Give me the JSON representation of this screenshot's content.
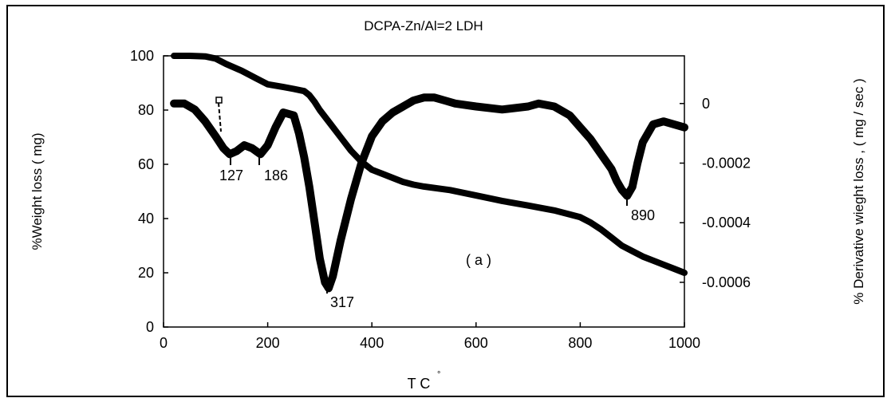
{
  "chart_data": {
    "type": "line",
    "title": "DCPA-Zn/Al=2 LDH",
    "xlabel": "T C",
    "xlabel_degree": "°",
    "ylabel_left": "%Weight loss ( mg)",
    "ylabel_right": "% Derivative wieght loss , ( mg / sec )",
    "xlim": [
      0,
      1000
    ],
    "ylim_left": [
      0,
      100
    ],
    "ylim_right": [
      -0.00075,
      0.00016
    ],
    "xticks": [
      "0",
      "200",
      "400",
      "600",
      "800",
      "1000"
    ],
    "yticks_left": [
      "0",
      "20",
      "40",
      "60",
      "80",
      "100"
    ],
    "yticks_right": [
      "0",
      "-0.0002",
      "-0.0004",
      "-0.0006"
    ],
    "grid": false,
    "annotation": "( a )",
    "peak_labels": [
      "127",
      "186",
      "317",
      "890"
    ],
    "series": [
      {
        "axis": "left",
        "x": [
          20,
          50,
          80,
          100,
          120,
          150,
          180,
          200,
          230,
          250,
          270,
          280,
          290,
          300,
          320,
          340,
          360,
          380,
          400,
          420,
          440,
          460,
          480,
          500,
          550,
          600,
          650,
          700,
          750,
          800,
          820,
          840,
          860,
          880,
          900,
          920,
          940,
          960,
          980,
          1000
        ],
        "y": [
          100,
          100,
          99.8,
          99,
          97,
          94.5,
          91.5,
          89.5,
          88.5,
          87.8,
          87,
          85.5,
          83,
          80,
          75,
          70,
          65,
          61,
          58,
          56.5,
          55,
          53.5,
          52.5,
          51.8,
          50.5,
          48.5,
          46.5,
          44.8,
          43,
          40.5,
          38.5,
          36,
          33,
          30,
          28,
          26,
          24.5,
          23,
          21.5,
          20
        ]
      },
      {
        "axis": "right",
        "x": [
          20,
          40,
          60,
          80,
          100,
          115,
          127,
          140,
          155,
          170,
          186,
          200,
          215,
          230,
          250,
          260,
          270,
          280,
          290,
          300,
          310,
          317,
          325,
          340,
          360,
          380,
          400,
          420,
          440,
          460,
          480,
          500,
          520,
          540,
          560,
          600,
          650,
          700,
          720,
          750,
          780,
          800,
          820,
          840,
          860,
          870,
          880,
          890,
          900,
          910,
          920,
          940,
          960,
          980,
          1000
        ],
        "y": [
          0.0,
          0.0,
          -2e-05,
          -6e-05,
          -0.00011,
          -0.00015,
          -0.00017,
          -0.00016,
          -0.00014,
          -0.00015,
          -0.00017,
          -0.00014,
          -8e-05,
          -3e-05,
          -4e-05,
          -0.0001,
          -0.00018,
          -0.00028,
          -0.0004,
          -0.00052,
          -0.0006,
          -0.00062,
          -0.00058,
          -0.00046,
          -0.00032,
          -0.0002,
          -0.00011,
          -6e-05,
          -3e-05,
          -1e-05,
          1e-05,
          2e-05,
          2e-05,
          1e-05,
          0.0,
          -1e-05,
          -2e-05,
          -1e-05,
          -0.0,
          -1e-05,
          -4e-05,
          -8e-05,
          -0.00012,
          -0.00017,
          -0.00022,
          -0.00026,
          -0.00029,
          -0.00031,
          -0.00028,
          -0.0002,
          -0.00013,
          -7e-05,
          -6e-05,
          -7e-05,
          -8e-05
        ]
      }
    ]
  }
}
